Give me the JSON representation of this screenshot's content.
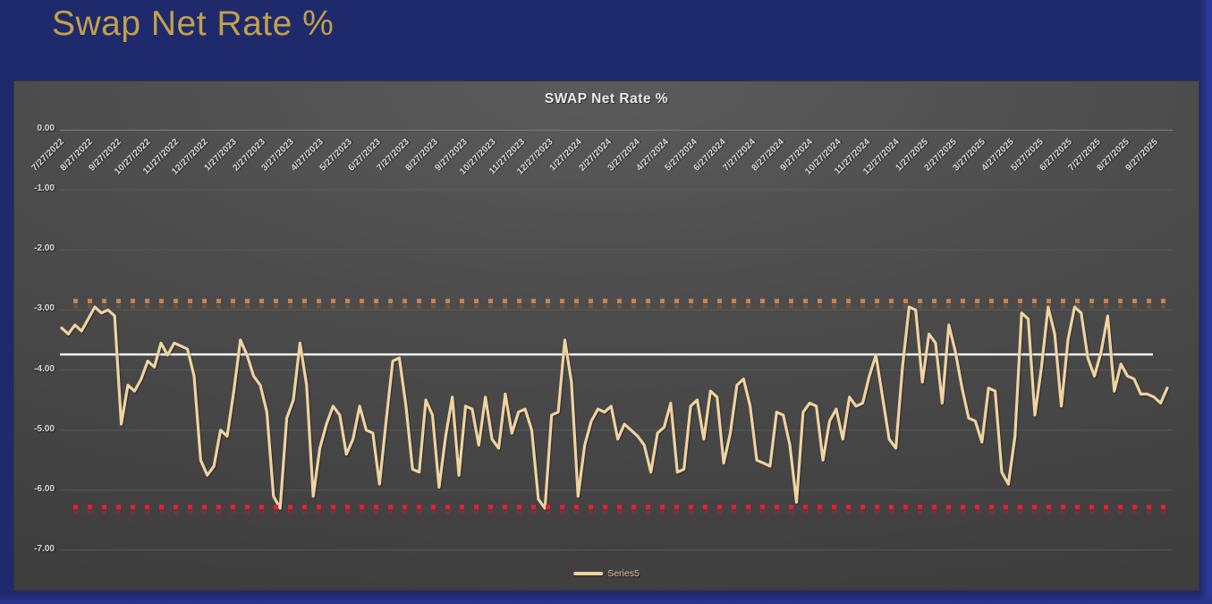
{
  "page": {
    "title": "Swap Net Rate %"
  },
  "colors": {
    "page_background": "#1E2A6B",
    "page_edge_glow": "#2B3B9D",
    "panel_background": "#4C4C4C",
    "page_title": "#C4A04A",
    "chart_title": "#EAEAEA",
    "axis_labels": "#D9D9D9",
    "gridline": "#6A6A6A",
    "series_line": "#F0D3A0",
    "average_line": "#F2F2F2",
    "upper_band_dots": "#C68455",
    "lower_band_dots": "#EC1C2E",
    "legend_text": "#D8C5A6"
  },
  "chart_data": {
    "type": "line",
    "title": "SWAP Net Rate %",
    "xlabel": "",
    "ylabel": "",
    "grid": true,
    "legend_position": "bottom",
    "ylim": [
      -7,
      0
    ],
    "y_ticks": [
      {
        "label": "0.00",
        "value": 0
      },
      {
        "label": "-1.00",
        "value": -1
      },
      {
        "label": "-2.00",
        "value": -2
      },
      {
        "label": "-3.00",
        "value": -3
      },
      {
        "label": "-4.00",
        "value": -4
      },
      {
        "label": "-5.00",
        "value": -5
      },
      {
        "label": "-6.00",
        "value": -6
      },
      {
        "label": "-7.00",
        "value": -7
      }
    ],
    "x_tick_labels": [
      "7/27/2022",
      "8/27/2022",
      "9/27/2022",
      "10/27/2022",
      "11/27/2022",
      "12/27/2022",
      "1/27/2023",
      "2/27/2023",
      "3/27/2023",
      "4/27/2023",
      "5/27/2023",
      "6/27/2023",
      "7/27/2023",
      "8/27/2023",
      "9/27/2023",
      "10/27/2023",
      "11/27/2023",
      "12/27/2023",
      "1/27/2024",
      "2/27/2024",
      "3/27/2024",
      "4/27/2024",
      "5/27/2024",
      "6/27/2024",
      "7/27/2024",
      "8/27/2024",
      "9/27/2024",
      "10/27/2024",
      "11/27/2024",
      "12/27/2024",
      "1/27/2025",
      "2/27/2025",
      "3/27/2025",
      "4/27/2025",
      "5/27/2025",
      "6/27/2025",
      "7/27/2025",
      "8/27/2025",
      "9/27/2025"
    ],
    "series": [
      {
        "name": "Series5",
        "color": "#F0D3A0",
        "frequency": "weekly",
        "values": [
          -3.3,
          -3.4,
          -3.25,
          -3.35,
          -3.15,
          -2.95,
          -3.05,
          -3.0,
          -3.1,
          -4.9,
          -4.25,
          -4.35,
          -4.15,
          -3.85,
          -3.95,
          -3.55,
          -3.75,
          -3.55,
          -3.6,
          -3.65,
          -4.1,
          -5.5,
          -5.75,
          -5.6,
          -5.0,
          -5.1,
          -4.35,
          -3.5,
          -3.75,
          -4.1,
          -4.25,
          -4.7,
          -6.1,
          -6.3,
          -4.8,
          -4.5,
          -3.55,
          -4.25,
          -6.1,
          -5.3,
          -4.9,
          -4.6,
          -4.75,
          -5.4,
          -5.15,
          -4.6,
          -5.0,
          -5.05,
          -5.9,
          -4.85,
          -3.85,
          -3.8,
          -4.6,
          -5.65,
          -5.7,
          -4.5,
          -4.75,
          -5.95,
          -5.1,
          -4.45,
          -5.75,
          -4.6,
          -4.65,
          -5.25,
          -4.45,
          -5.15,
          -5.3,
          -4.4,
          -5.05,
          -4.7,
          -4.65,
          -5.0,
          -6.15,
          -6.3,
          -4.75,
          -4.7,
          -3.5,
          -4.2,
          -6.1,
          -5.25,
          -4.85,
          -4.65,
          -4.7,
          -4.6,
          -5.15,
          -4.9,
          -5.0,
          -5.1,
          -5.25,
          -5.7,
          -5.05,
          -4.95,
          -4.55,
          -5.7,
          -5.65,
          -4.6,
          -4.5,
          -5.15,
          -4.35,
          -4.45,
          -5.55,
          -5.05,
          -4.25,
          -4.15,
          -4.6,
          -5.5,
          -5.55,
          -5.6,
          -4.7,
          -4.75,
          -5.25,
          -6.2,
          -4.7,
          -4.55,
          -4.6,
          -5.5,
          -4.85,
          -4.65,
          -5.15,
          -4.45,
          -4.6,
          -4.55,
          -4.1,
          -3.75,
          -4.45,
          -5.15,
          -5.3,
          -3.95,
          -2.95,
          -3.0,
          -4.2,
          -3.4,
          -3.55,
          -4.55,
          -3.25,
          -3.7,
          -4.3,
          -4.8,
          -4.85,
          -5.2,
          -4.3,
          -4.35,
          -5.7,
          -5.9,
          -5.1,
          -3.05,
          -3.15,
          -4.75,
          -3.95,
          -2.95,
          -3.4,
          -4.6,
          -3.5,
          -2.95,
          -3.05,
          -3.8,
          -4.1,
          -3.7,
          -3.1,
          -4.35,
          -3.9,
          -4.1,
          -4.15,
          -4.4,
          -4.4,
          -4.45,
          -4.55,
          -4.3
        ]
      }
    ],
    "reference_lines": [
      {
        "name": "average",
        "value": -3.74,
        "style": "solid",
        "color": "#F2F2F2"
      },
      {
        "name": "upper-band",
        "value": -2.85,
        "style": "dotted",
        "color": "#C68455"
      },
      {
        "name": "lower-band",
        "value": -6.28,
        "style": "dotted",
        "color": "#EC1C2E"
      }
    ]
  }
}
